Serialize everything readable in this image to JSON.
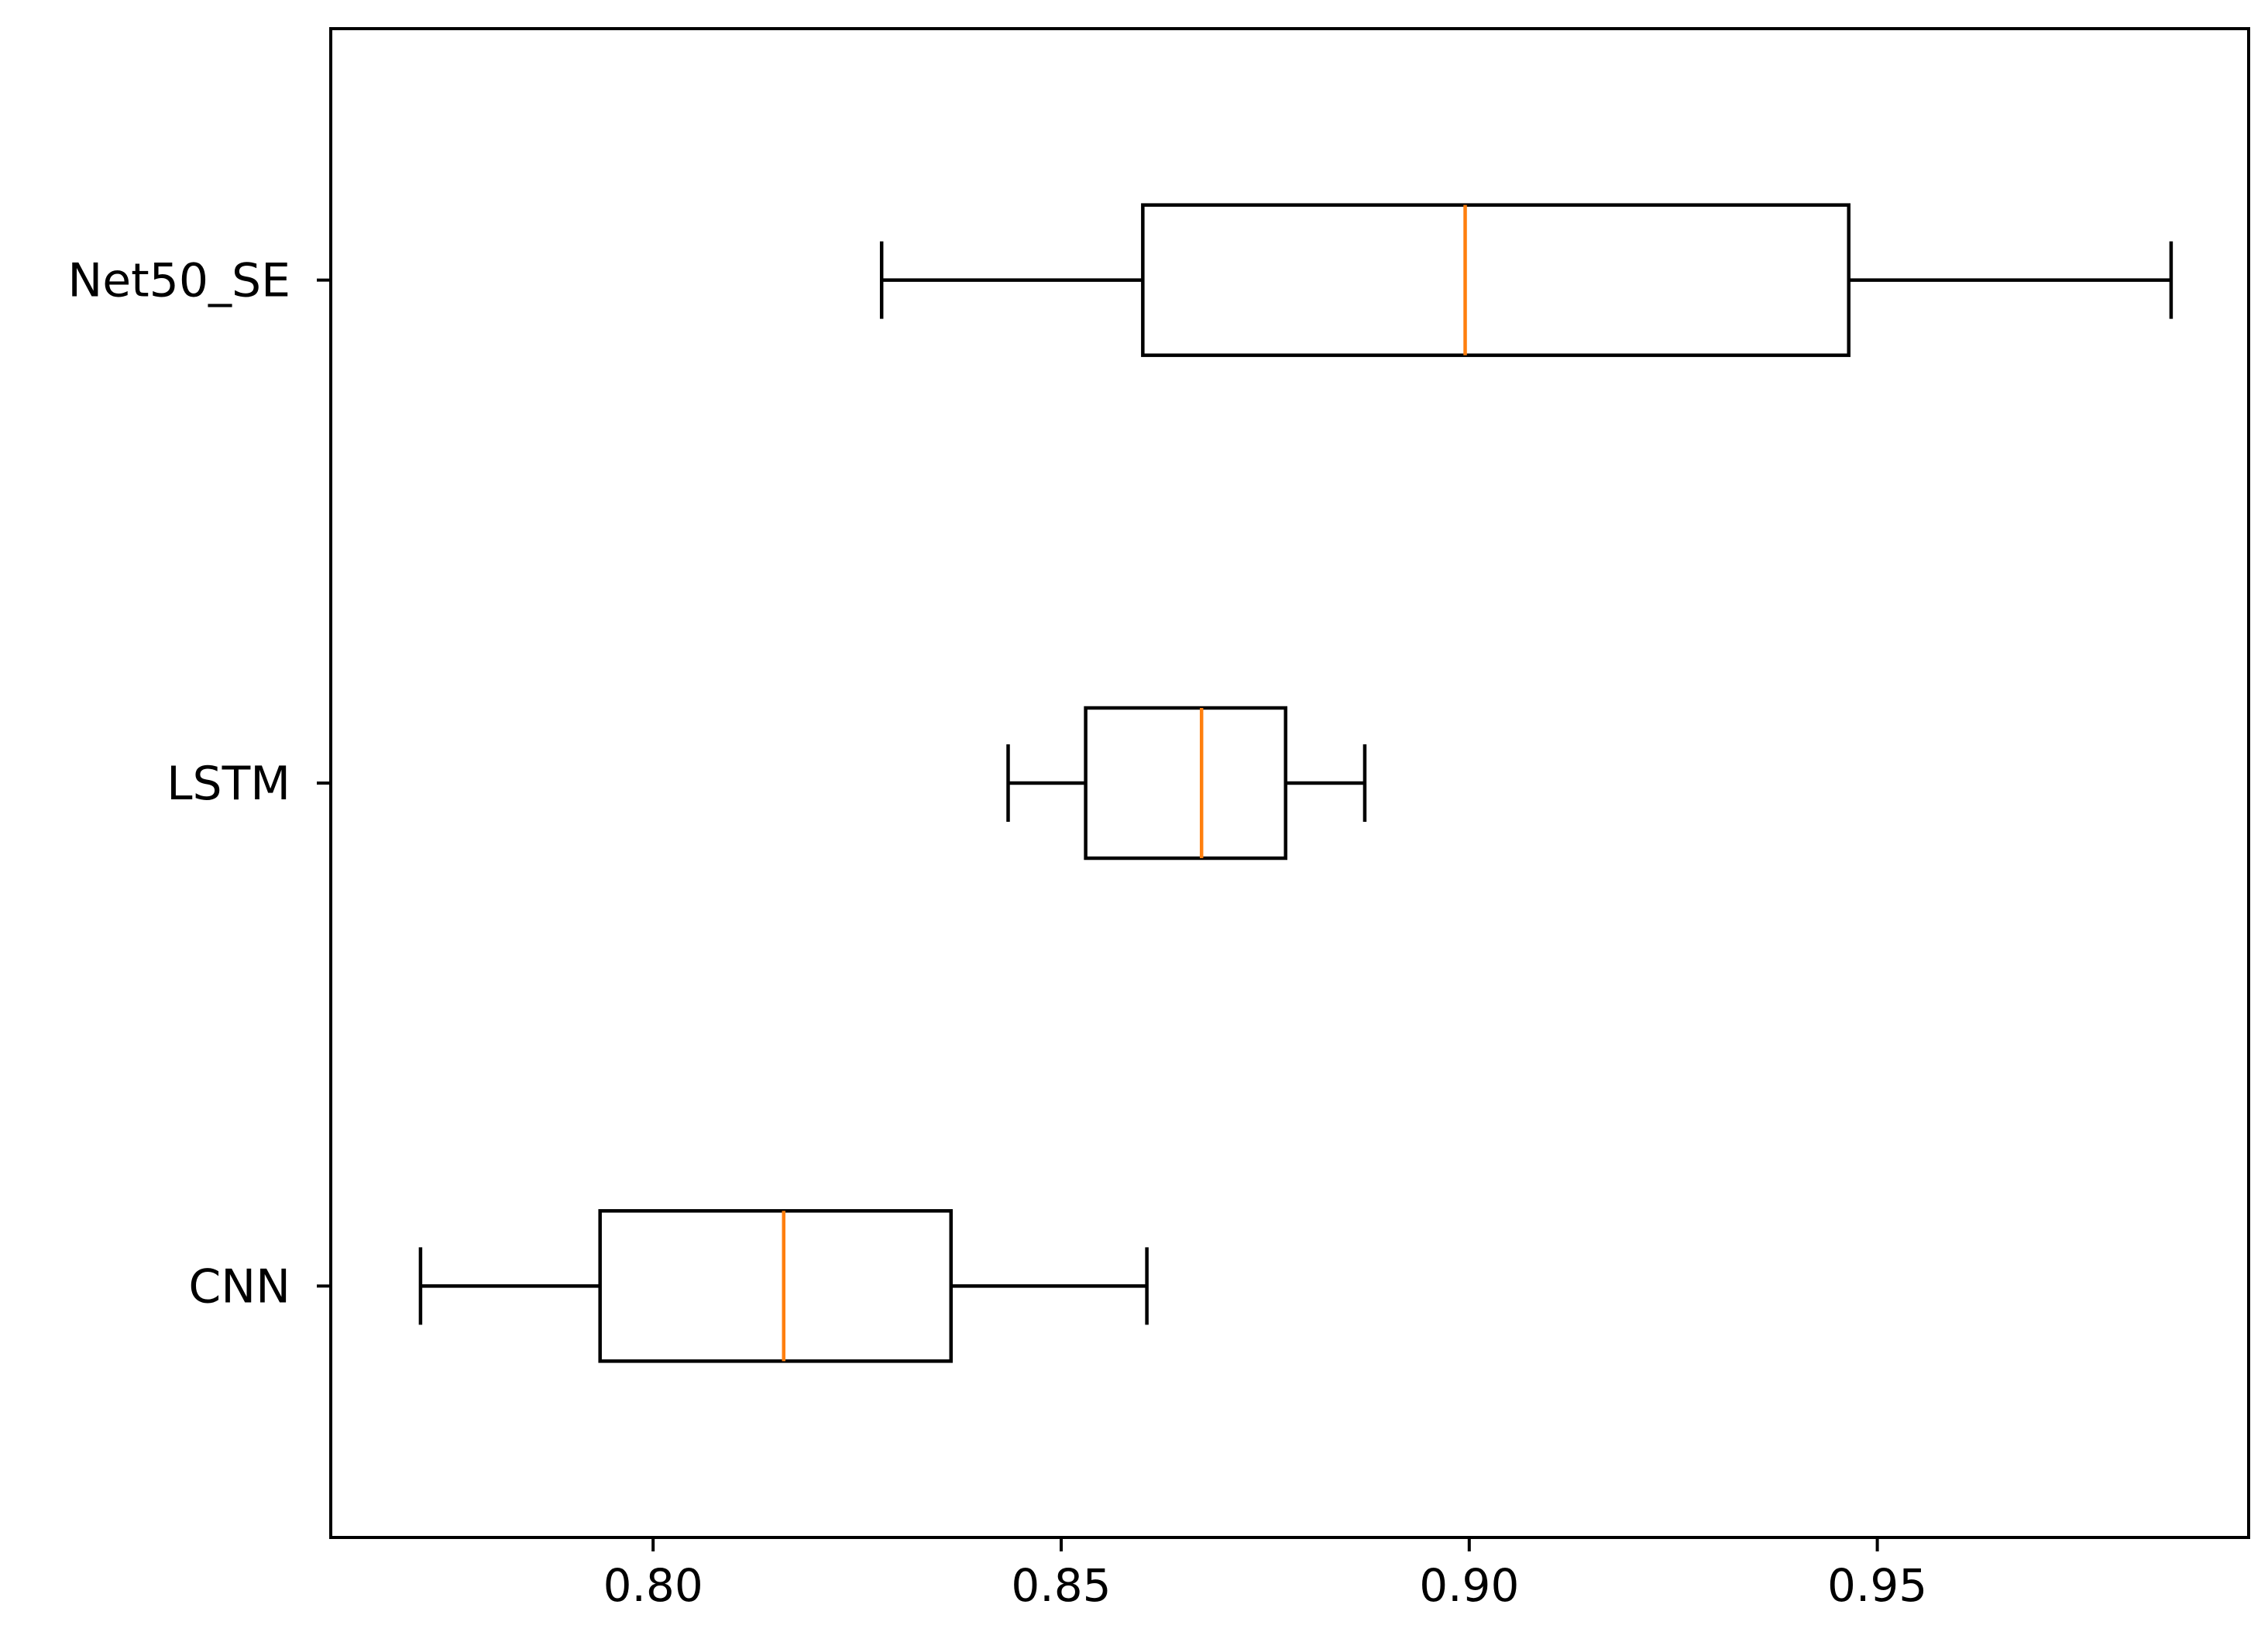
{
  "chart_data": {
    "type": "boxplot",
    "orientation": "horizontal",
    "title": "",
    "xlabel": "",
    "ylabel": "",
    "xlim": [
      0.7605,
      0.9955
    ],
    "x_ticks": [
      {
        "value": 0.8,
        "label": "0.80"
      },
      {
        "value": 0.85,
        "label": "0.85"
      },
      {
        "value": 0.9,
        "label": "0.90"
      },
      {
        "value": 0.95,
        "label": "0.95"
      }
    ],
    "categories": [
      "Net50_SE",
      "LSTM",
      "CNN"
    ],
    "series": [
      {
        "category": "Net50_SE",
        "whisker_low": 0.828,
        "q1": 0.86,
        "median": 0.8995,
        "q3": 0.9465,
        "whisker_high": 0.986
      },
      {
        "category": "LSTM",
        "whisker_low": 0.8435,
        "q1": 0.853,
        "median": 0.8672,
        "q3": 0.8775,
        "whisker_high": 0.8872
      },
      {
        "category": "CNN",
        "whisker_low": 0.7715,
        "q1": 0.7935,
        "median": 0.816,
        "q3": 0.8365,
        "whisker_high": 0.8605
      }
    ],
    "colors": {
      "box": "#000000",
      "median": "#ff7f0e",
      "whisker": "#000000",
      "axes": "#000000"
    },
    "grid": false,
    "legend": "none"
  }
}
